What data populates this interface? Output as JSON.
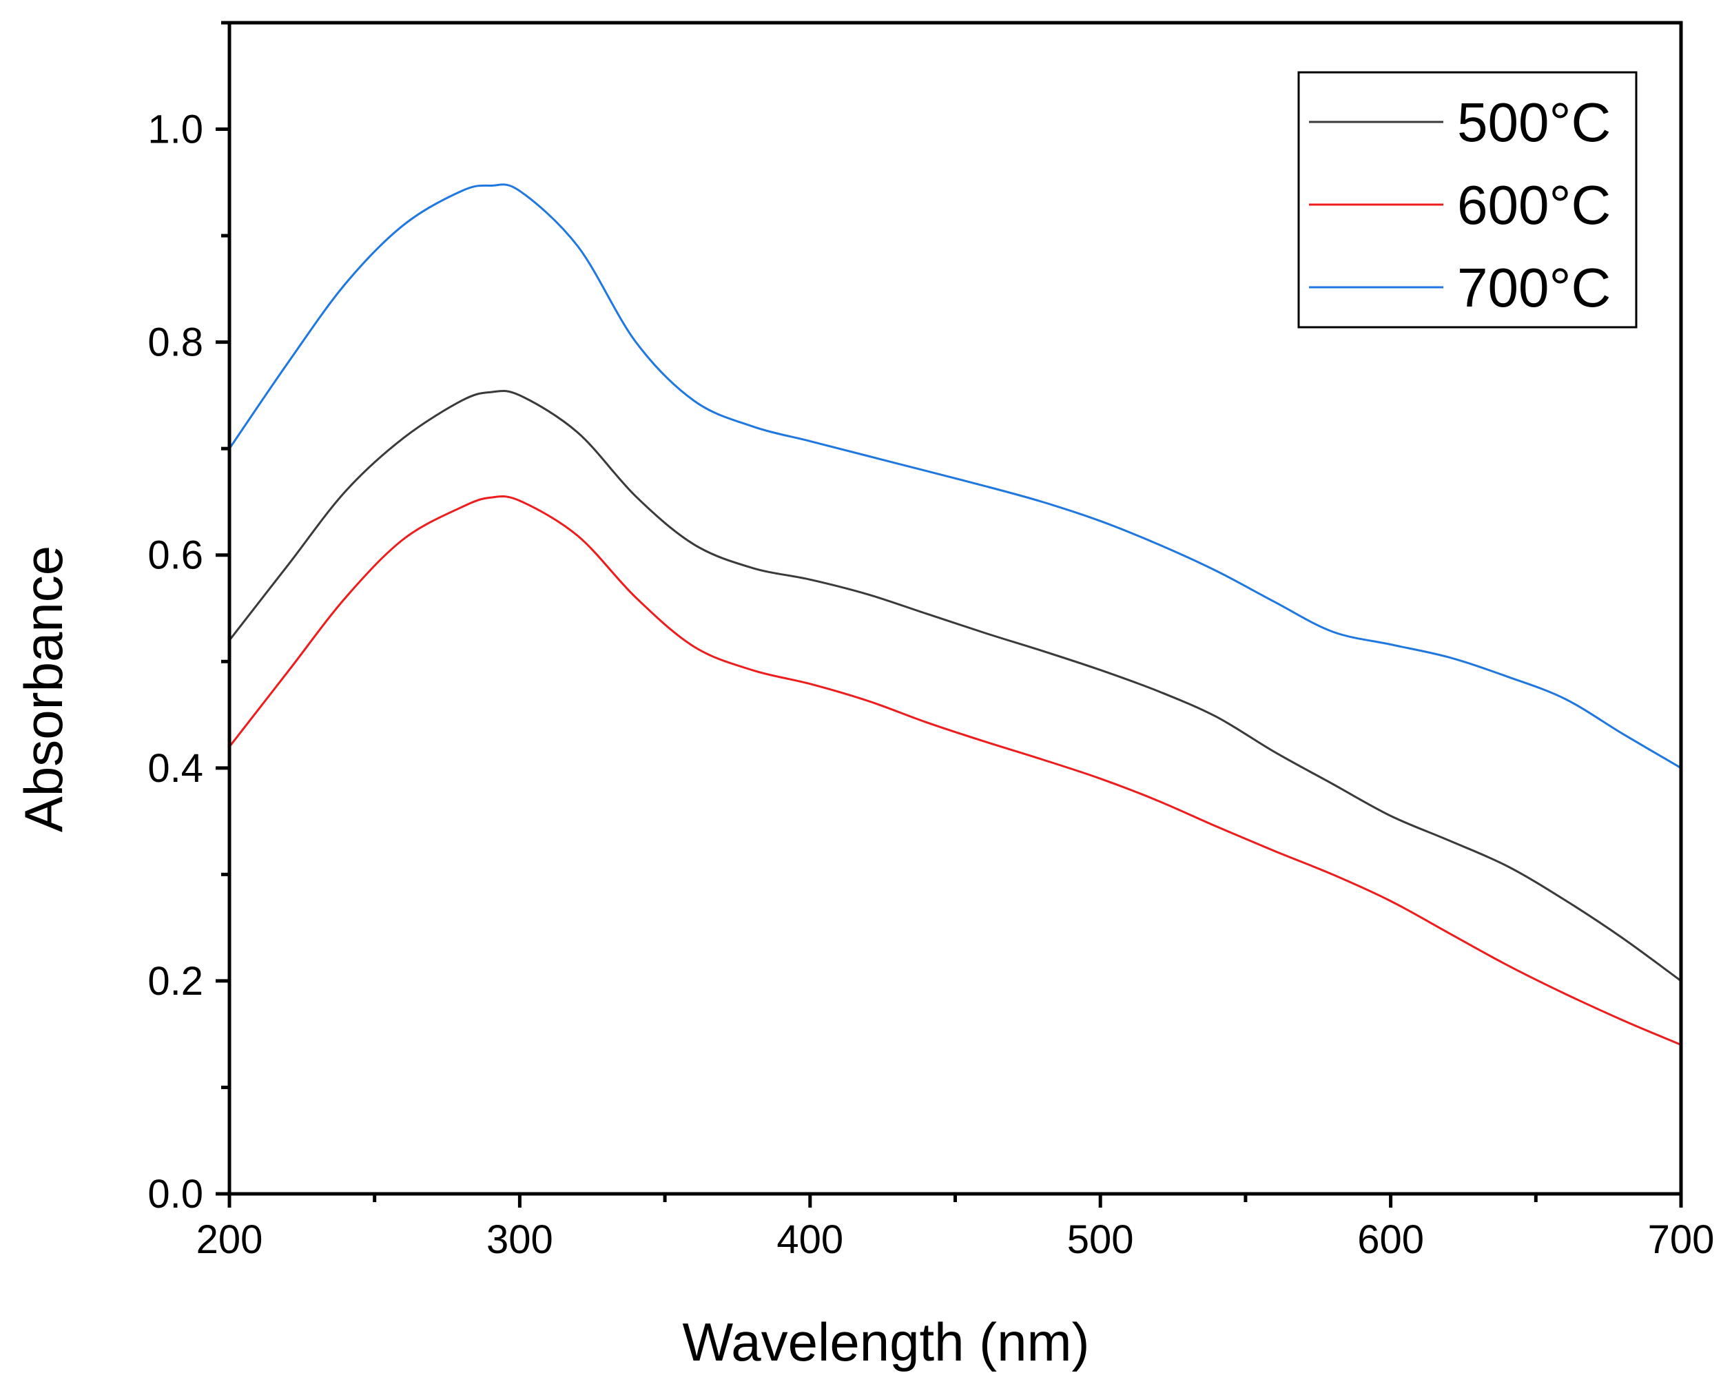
{
  "chart_data": {
    "type": "line",
    "title": "",
    "xlabel": "Wavelength (nm)",
    "ylabel": "Absorbance",
    "xlim": [
      200,
      700
    ],
    "ylim": [
      0.0,
      1.1
    ],
    "x_ticks": [
      200,
      300,
      400,
      500,
      600,
      700
    ],
    "x_tick_labels": [
      "200",
      "300",
      "400",
      "500",
      "600",
      "700"
    ],
    "y_ticks": [
      0.0,
      0.2,
      0.4,
      0.6,
      0.8,
      1.0
    ],
    "y_tick_labels": [
      "0.0",
      "0.2",
      "0.4",
      "0.6",
      "0.8",
      "1.0"
    ],
    "grid": false,
    "legend_position": "top-right",
    "x": [
      200,
      220,
      240,
      260,
      280,
      290,
      300,
      320,
      340,
      360,
      380,
      400,
      420,
      440,
      460,
      480,
      500,
      520,
      540,
      560,
      580,
      600,
      620,
      640,
      660,
      680,
      700
    ],
    "series": [
      {
        "name": "500°C",
        "color": "#3a3a3a",
        "values": [
          0.52,
          0.59,
          0.66,
          0.71,
          0.745,
          0.753,
          0.75,
          0.715,
          0.655,
          0.61,
          0.588,
          0.577,
          0.563,
          0.545,
          0.527,
          0.51,
          0.492,
          0.472,
          0.448,
          0.415,
          0.385,
          0.355,
          0.332,
          0.308,
          0.276,
          0.24,
          0.2
        ]
      },
      {
        "name": "600°C",
        "color": "#ee1c1c",
        "values": [
          0.42,
          0.49,
          0.56,
          0.615,
          0.645,
          0.654,
          0.651,
          0.618,
          0.56,
          0.514,
          0.492,
          0.479,
          0.463,
          0.443,
          0.425,
          0.408,
          0.39,
          0.369,
          0.345,
          0.322,
          0.3,
          0.275,
          0.245,
          0.215,
          0.188,
          0.163,
          0.14
        ]
      },
      {
        "name": "700°C",
        "color": "#1f77e0",
        "values": [
          0.7,
          0.78,
          0.855,
          0.91,
          0.942,
          0.947,
          0.942,
          0.89,
          0.8,
          0.745,
          0.721,
          0.707,
          0.693,
          0.679,
          0.665,
          0.65,
          0.632,
          0.61,
          0.585,
          0.556,
          0.528,
          0.516,
          0.504,
          0.486,
          0.465,
          0.432,
          0.4
        ]
      }
    ]
  }
}
